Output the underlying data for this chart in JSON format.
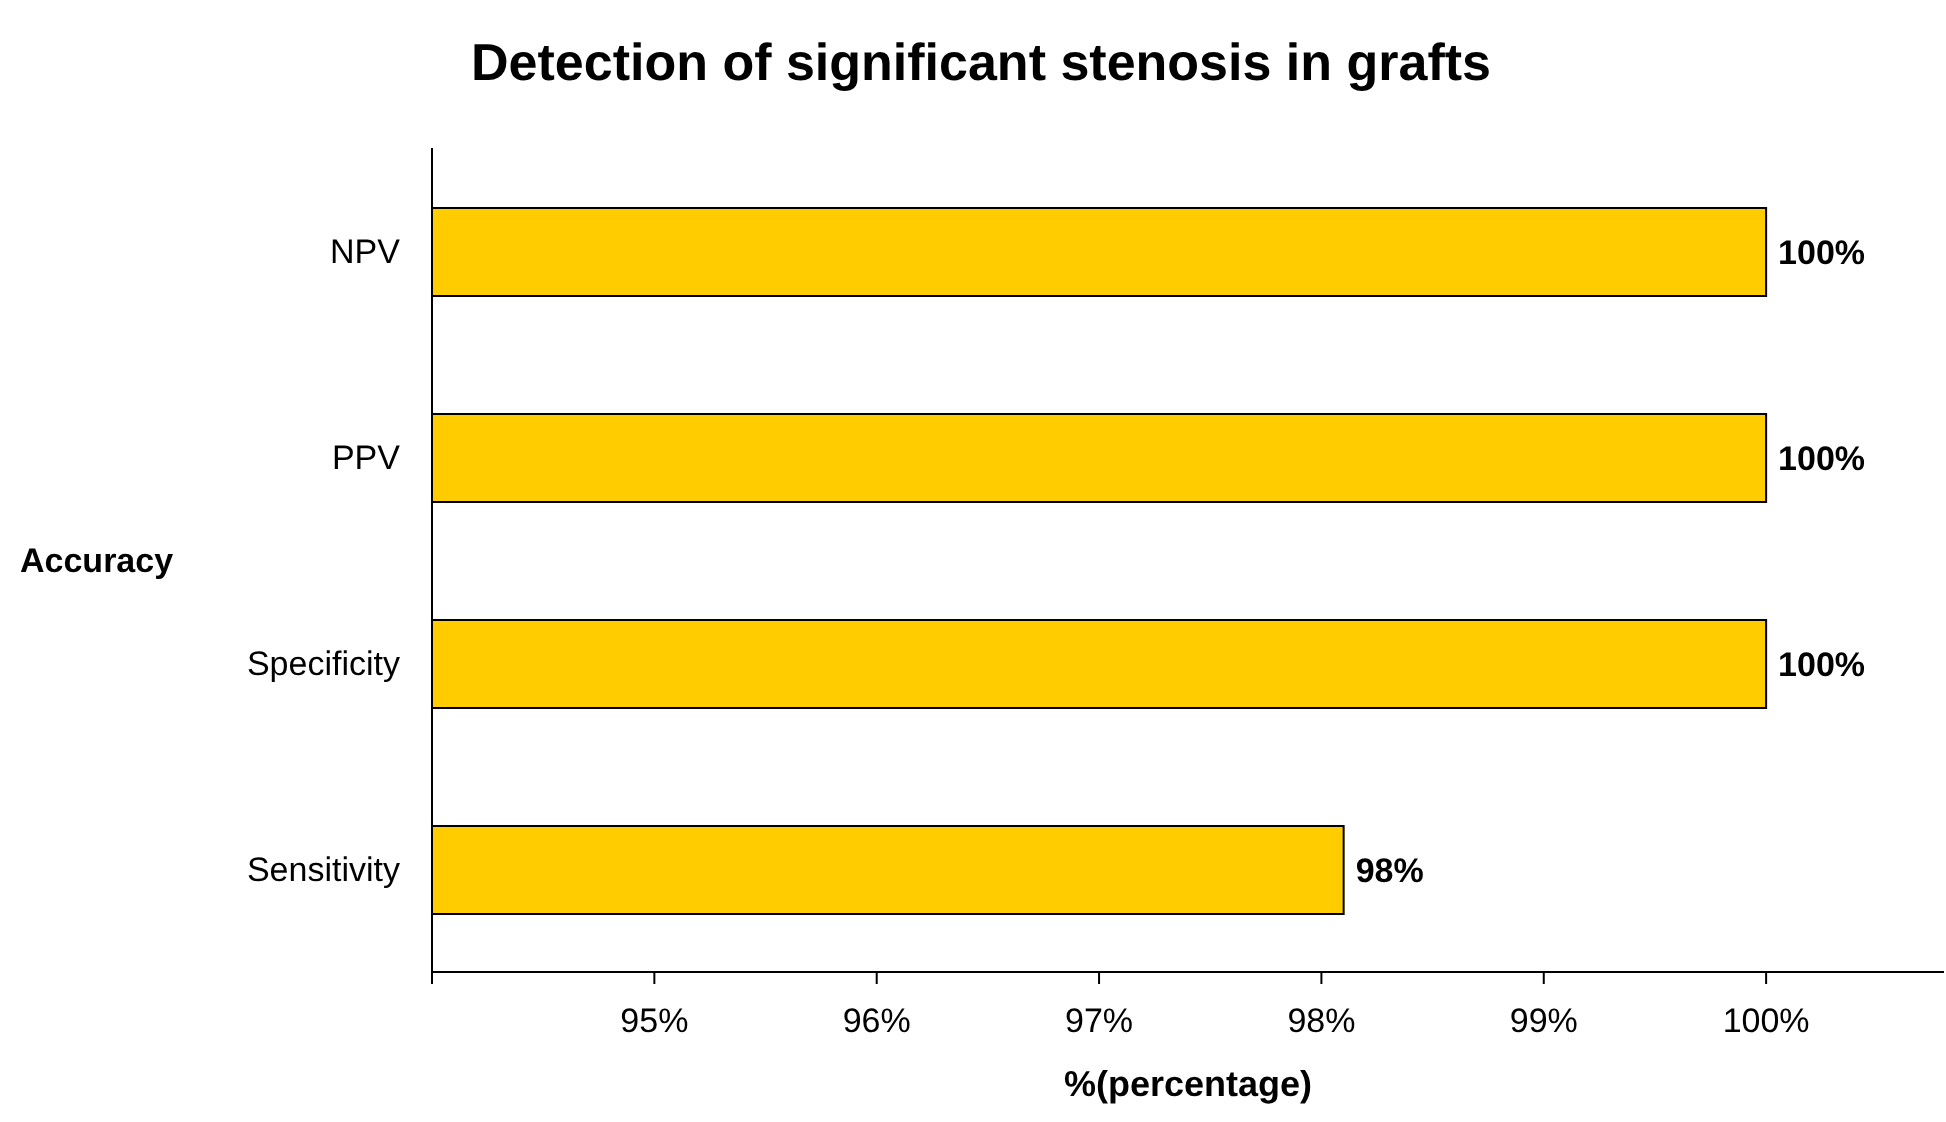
{
  "chart_data": {
    "type": "bar",
    "orientation": "horizontal",
    "title": "Detection of significant stenosis in grafts",
    "xlabel": "%(percentage)",
    "ylabel": "Accuracy",
    "categories": [
      "NPV",
      "PPV",
      "Specificity",
      "Sensitivity"
    ],
    "values": [
      100,
      100,
      100,
      98.1
    ],
    "color": "#ffcc00",
    "value_labels": [
      "100%",
      "100%",
      "100%",
      "98%"
    ],
    "xlim": [
      94,
      100.8
    ],
    "xticks": [
      {
        "value": 94,
        "label": null
      },
      {
        "value": 95,
        "label": "95%"
      },
      {
        "value": 96,
        "label": "96%"
      },
      {
        "value": 97,
        "label": "97%"
      },
      {
        "value": 98,
        "label": "98%"
      },
      {
        "value": 99,
        "label": "99%"
      },
      {
        "value": 100,
        "label": "100%"
      }
    ],
    "grid": false,
    "legend": false
  }
}
